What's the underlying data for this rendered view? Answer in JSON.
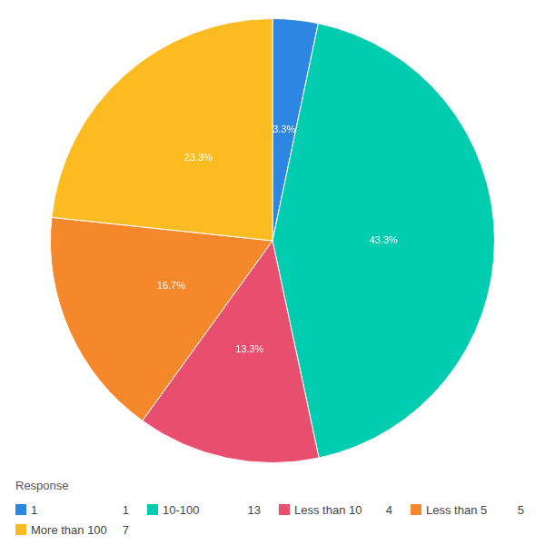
{
  "chart_data": {
    "type": "pie",
    "categories": [
      "1",
      "10-100",
      "Less than 10",
      "Less than 5",
      "More than 100"
    ],
    "values": [
      3.3,
      43.3,
      13.3,
      16.7,
      23.3
    ],
    "value_labels": [
      "3.3%",
      "43.3%",
      "13.3%",
      "16.7%",
      "23.3%"
    ],
    "counts": [
      1,
      13,
      4,
      5,
      7
    ],
    "colors": [
      "#2d87e2",
      "#00ccb0",
      "#e84f6f",
      "#f5882a",
      "#fbbb21"
    ],
    "data_labels": true,
    "legend": "bottom",
    "legend_title": "Response"
  }
}
